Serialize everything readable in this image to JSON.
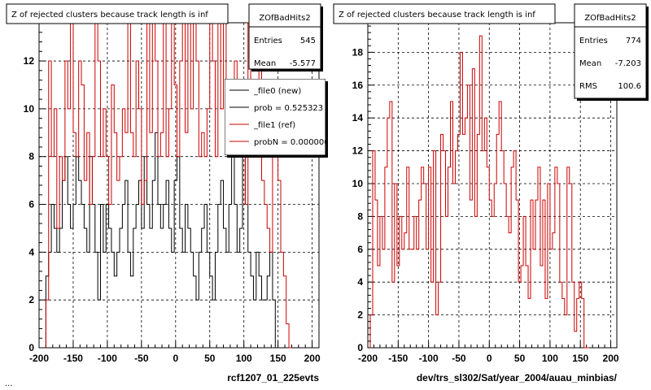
{
  "footer_text": "...",
  "chart_data": [
    {
      "type": "line",
      "title": "Z of rejected clusters  because track length is inf",
      "xlabel": "rcf1207_01_225evts",
      "xlim": [
        -200,
        210
      ],
      "ylim": [
        0,
        13.6
      ],
      "xticks": [
        -200,
        -150,
        -100,
        -50,
        0,
        50,
        100,
        150,
        200
      ],
      "yticks": [
        0,
        2,
        4,
        6,
        8,
        10,
        12
      ],
      "grid": true,
      "bin_start": -190,
      "bin_width": 4,
      "stats": {
        "name": "ZOfBadHits2",
        "rows": [
          {
            "label": "Entries",
            "value": "545"
          },
          {
            "label": "Mean",
            "value": "-5.577"
          }
        ]
      },
      "legend": {
        "placement": "top-right",
        "entries": [
          {
            "label": "_file0 (new)",
            "color": "#000000"
          },
          {
            "label": "prob = 0.525323",
            "color": "#000000"
          },
          {
            "label": "_file1 (ref)",
            "color": "#cc0000"
          },
          {
            "label": "probN = 0.000000",
            "color": "#cc0000"
          }
        ]
      },
      "series": [
        {
          "name": "_file0 (new)",
          "color": "#000000",
          "values": [
            3,
            4,
            6,
            5,
            4,
            5,
            7,
            8,
            6,
            5,
            6,
            8,
            7,
            6,
            5,
            4,
            8,
            6,
            4,
            2,
            6,
            4,
            6,
            5,
            4,
            3,
            4,
            5,
            6,
            7,
            4,
            3,
            5,
            6,
            7,
            5,
            8,
            6,
            5,
            7,
            9,
            6,
            5,
            6,
            7,
            5,
            4,
            7,
            8,
            5,
            4,
            6,
            5,
            4,
            3,
            2,
            4,
            5,
            6,
            4,
            3,
            2,
            4,
            6,
            7,
            5,
            4,
            6,
            8,
            6,
            4,
            5,
            8,
            6,
            4,
            3,
            2,
            4,
            3,
            2,
            2,
            3,
            4,
            2,
            0,
            0,
            0,
            0,
            0,
            0
          ]
        },
        {
          "name": "_file1 (ref)",
          "color": "#cc0000",
          "values": [
            2,
            12,
            8,
            10,
            5,
            8,
            7,
            12,
            10,
            13.6,
            9,
            8,
            12,
            11,
            7,
            9,
            6,
            8,
            13.6,
            12,
            8,
            10,
            8,
            6,
            11,
            9,
            7,
            8,
            10,
            9,
            13.6,
            9,
            8,
            12,
            10,
            6,
            7,
            13.6,
            9,
            13.6,
            12,
            8,
            9,
            13.6,
            8,
            10,
            13.6,
            11,
            8,
            12,
            13.6,
            9,
            13.6,
            10,
            13.6,
            12,
            8,
            9,
            8,
            10,
            13.6,
            12,
            8,
            13.6,
            10,
            13.6,
            11,
            9,
            8,
            12,
            10,
            8,
            9,
            6,
            13.6,
            9,
            8,
            10,
            12,
            7,
            6,
            5,
            4,
            8,
            9,
            7,
            4,
            3,
            1,
            0
          ]
        }
      ]
    },
    {
      "type": "line",
      "title": "Z of rejected clusters  because track length is inf",
      "xlabel": "dev/trs_sl302/Sat/year_2004/auau_minbias/",
      "xlim": [
        -200,
        210
      ],
      "ylim": [
        0,
        19.8
      ],
      "xticks": [
        -200,
        -150,
        -100,
        -50,
        0,
        50,
        100,
        150,
        200
      ],
      "yticks": [
        0,
        2,
        4,
        6,
        8,
        10,
        12,
        14,
        16,
        18
      ],
      "grid": true,
      "bin_start": -196,
      "bin_width": 4,
      "stats": {
        "name": "ZOfBadHits2",
        "rows": [
          {
            "label": "Entries",
            "value": "774"
          },
          {
            "label": "Mean",
            "value": "-7.203"
          },
          {
            "label": "RMS",
            "value": "100.6"
          }
        ]
      },
      "series": [
        {
          "name": "",
          "color": "#cc0000",
          "values": [
            2,
            12,
            9,
            5,
            8,
            6,
            11,
            14,
            15,
            4,
            10,
            5,
            8,
            6,
            7,
            11,
            6,
            6,
            8,
            6,
            9,
            11,
            10,
            6,
            11,
            4,
            12,
            2,
            4,
            13,
            12,
            8,
            11,
            15,
            10,
            12,
            13,
            18,
            13,
            14,
            16,
            9,
            17,
            8,
            13,
            19,
            12,
            14,
            11,
            9,
            8,
            10,
            13,
            15,
            12,
            10,
            8,
            7,
            11,
            12,
            9,
            4,
            5,
            8,
            5,
            3,
            9,
            6,
            9,
            11,
            5,
            9,
            3,
            10,
            6,
            7,
            11,
            10,
            4,
            3,
            2,
            11,
            10,
            4,
            1,
            3,
            4,
            3,
            0,
            0
          ]
        }
      ]
    }
  ]
}
